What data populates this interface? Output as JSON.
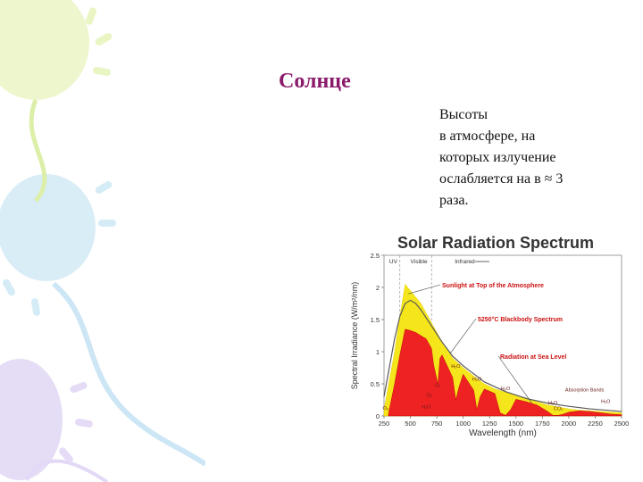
{
  "slide": {
    "title": "Солнце",
    "caption_lines": [
      "Высоты",
      "в атмосфере, на",
      "которых излучение",
      "ослабляется на в ≈ 3",
      "раза."
    ]
  },
  "colors": {
    "title": "#8b1a6b",
    "toa_fill": "#f5e61b",
    "sea_level_fill": "#ee2222",
    "blackbody_line": "#5a5a5a",
    "annotation_text": "#cc1111"
  },
  "chart_data": {
    "type": "area",
    "title": "Solar Radiation Spectrum",
    "xlabel": "Wavelength (nm)",
    "ylabel": "Spectral Irradiance (W/m²/nm)",
    "xlim": [
      250,
      2500
    ],
    "ylim": [
      0,
      2.5
    ],
    "xticks": [
      "250",
      "500",
      "750",
      "1000",
      "1250",
      "1500",
      "1750",
      "2000",
      "2250",
      "2500"
    ],
    "yticks": [
      "0",
      "0.5",
      "1",
      "1.5",
      "2",
      "2.5"
    ],
    "band_labels": [
      "UV",
      "Visible",
      "Infrared"
    ],
    "series": [
      {
        "name": "Sunlight at Top of the Atmosphere",
        "x": [
          250,
          300,
          350,
          400,
          450,
          500,
          550,
          600,
          700,
          800,
          900,
          1000,
          1100,
          1200,
          1300,
          1400,
          1500,
          1600,
          1700,
          1800,
          1900,
          2000,
          2100,
          2200,
          2300,
          2400,
          2500
        ],
        "y": [
          0.1,
          0.55,
          1.0,
          1.55,
          2.05,
          1.95,
          1.85,
          1.75,
          1.45,
          1.15,
          0.9,
          0.75,
          0.62,
          0.5,
          0.42,
          0.37,
          0.32,
          0.28,
          0.22,
          0.17,
          0.14,
          0.11,
          0.09,
          0.08,
          0.07,
          0.06,
          0.05
        ]
      },
      {
        "name": "5250°C Blackbody Spectrum",
        "x": [
          250,
          300,
          350,
          400,
          450,
          500,
          550,
          600,
          700,
          800,
          900,
          1000,
          1200,
          1400,
          1600,
          1800,
          2000,
          2200,
          2500
        ],
        "y": [
          0.3,
          0.75,
          1.2,
          1.55,
          1.75,
          1.8,
          1.75,
          1.65,
          1.4,
          1.15,
          0.93,
          0.78,
          0.53,
          0.38,
          0.27,
          0.2,
          0.15,
          0.11,
          0.07
        ]
      },
      {
        "name": "Radiation at Sea Level",
        "x": [
          290,
          300,
          350,
          400,
          450,
          500,
          550,
          600,
          650,
          700,
          720,
          760,
          780,
          800,
          900,
          930,
          960,
          1000,
          1100,
          1130,
          1160,
          1200,
          1300,
          1350,
          1400,
          1450,
          1500,
          1600,
          1700,
          1800,
          1850,
          1900,
          1950,
          2000,
          2100,
          2200,
          2300,
          2400,
          2500
        ],
        "y": [
          0.0,
          0.1,
          0.5,
          0.95,
          1.35,
          1.33,
          1.3,
          1.25,
          1.2,
          1.05,
          0.8,
          0.5,
          0.9,
          0.95,
          0.6,
          0.25,
          0.45,
          0.65,
          0.4,
          0.1,
          0.3,
          0.42,
          0.35,
          0.05,
          0.01,
          0.1,
          0.26,
          0.22,
          0.17,
          0.07,
          0.01,
          0.01,
          0.03,
          0.06,
          0.08,
          0.07,
          0.05,
          0.03,
          0.02
        ]
      }
    ],
    "annotations": [
      "H₂O",
      "H₂O",
      "H₂O",
      "H₂O",
      "H₂O",
      "H₂O",
      "O₂",
      "O₂",
      "O₃",
      "CO₂",
      "Absorption Bands"
    ]
  }
}
